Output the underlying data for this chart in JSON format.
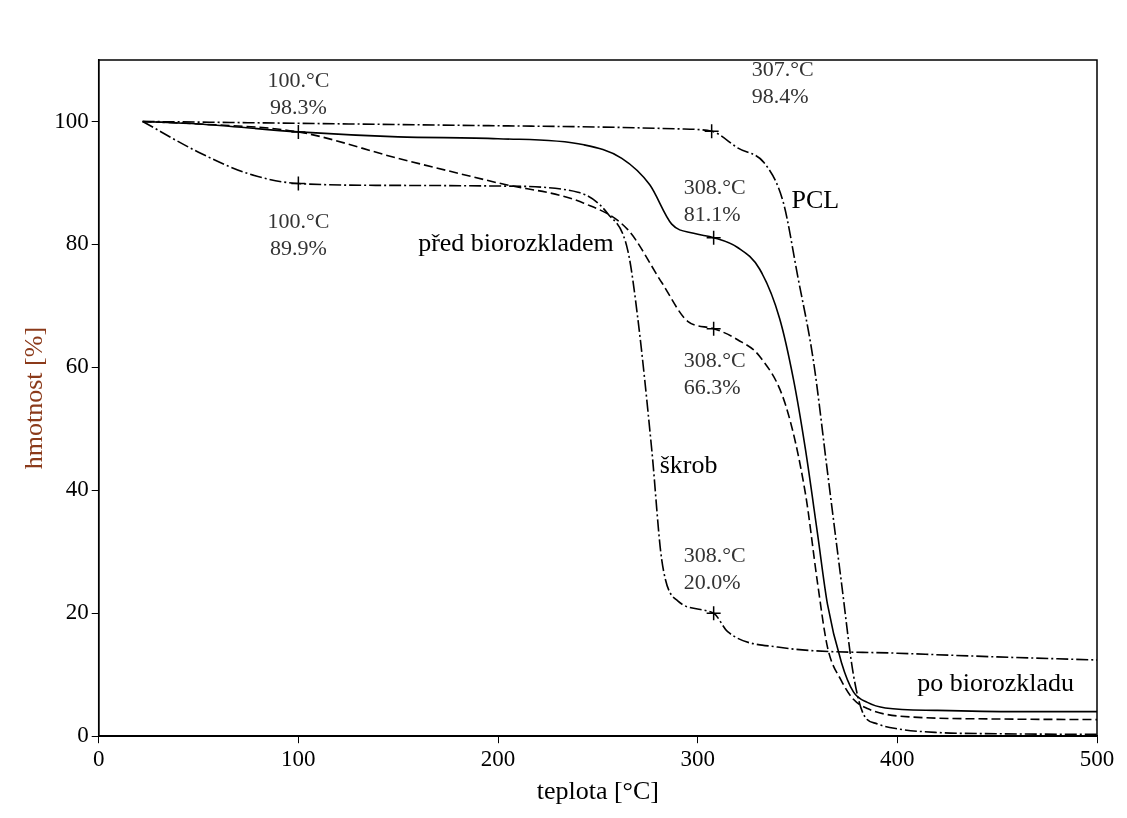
{
  "chart_data": {
    "type": "line",
    "xlabel": "teplota [°C]",
    "ylabel": "hmotnost [%]",
    "xlim": [
      0,
      500
    ],
    "ylim": [
      0,
      110
    ],
    "xticks": [
      0,
      100,
      200,
      300,
      400,
      500
    ],
    "yticks": [
      0,
      20,
      40,
      60,
      80,
      100
    ],
    "grid": false,
    "legend": false,
    "marker": "none",
    "series": [
      {
        "name": "PCL",
        "color": "#000000",
        "line_style": "dotted",
        "x": [
          22,
          50,
          100,
          150,
          200,
          250,
          290,
          307,
          320,
          334,
          343,
          350,
          358,
          365,
          372,
          378,
          383,
          390,
          400,
          420,
          450,
          500
        ],
        "values": [
          100,
          99.9,
          99.7,
          99.5,
          99.3,
          99.1,
          98.8,
          98.4,
          95.7,
          93,
          86.7,
          75,
          61,
          43,
          25,
          10,
          3.6,
          2,
          1.2,
          0.6,
          0.4,
          0.3
        ]
      },
      {
        "name": "po biorozkladu",
        "color": "#000000",
        "line_style": "solid",
        "x": [
          22,
          50,
          100,
          150,
          200,
          243,
          262,
          276,
          287,
          298,
          308,
          320,
          331,
          341,
          348,
          354,
          360,
          365,
          372,
          378,
          385,
          394,
          420,
          460,
          500
        ],
        "values": [
          100,
          99.6,
          98.3,
          97.5,
          97.2,
          96.2,
          94,
          89.7,
          83.3,
          81.8,
          81.1,
          79.5,
          76,
          68,
          58,
          46.6,
          33,
          21.5,
          12,
          7.2,
          5.5,
          4.6,
          4.2,
          4,
          4
        ]
      },
      {
        "name": "před biorozkladem",
        "color": "#000000",
        "line_style": "dashed",
        "x": [
          22,
          50,
          100,
          150,
          200,
          243,
          265,
          282,
          295,
          308,
          320,
          331,
          344,
          354,
          360,
          365,
          372,
          378,
          385,
          400,
          450,
          500
        ],
        "values": [
          100,
          99.6,
          98.3,
          94,
          90,
          86.7,
          82.4,
          73.8,
          67.5,
          66.3,
          64.5,
          61.8,
          53.9,
          39.4,
          25,
          14.5,
          9,
          6,
          4.5,
          3.3,
          2.8,
          2.7
        ]
      },
      {
        "name": "škrob",
        "color": "#000000",
        "line_style": "dotted",
        "x": [
          22,
          50,
          75,
          100,
          150,
          200,
          240,
          255,
          265,
          270,
          277,
          282,
          290,
          308,
          315,
          340,
          400,
          450,
          500
        ],
        "values": [
          100,
          95,
          91.5,
          89.9,
          89.6,
          89.5,
          88.5,
          85,
          79,
          68,
          46.6,
          28.7,
          22,
          20,
          17,
          14.5,
          13.5,
          12.9,
          12.4
        ]
      }
    ],
    "annotations": [
      {
        "text": "100.°C\n98.3%",
        "x": 100,
        "y": 98.3
      },
      {
        "text": "100.°C\n89.9%",
        "x": 100,
        "y": 89.9
      },
      {
        "text": "307.°C\n98.4%",
        "x": 307,
        "y": 98.4
      },
      {
        "text": "308.°C\n81.1%",
        "x": 308,
        "y": 81.1
      },
      {
        "text": "308.°C\n66.3%",
        "x": 308,
        "y": 66.3
      },
      {
        "text": "308.°C\n20.0%",
        "x": 308,
        "y": 20
      }
    ]
  }
}
